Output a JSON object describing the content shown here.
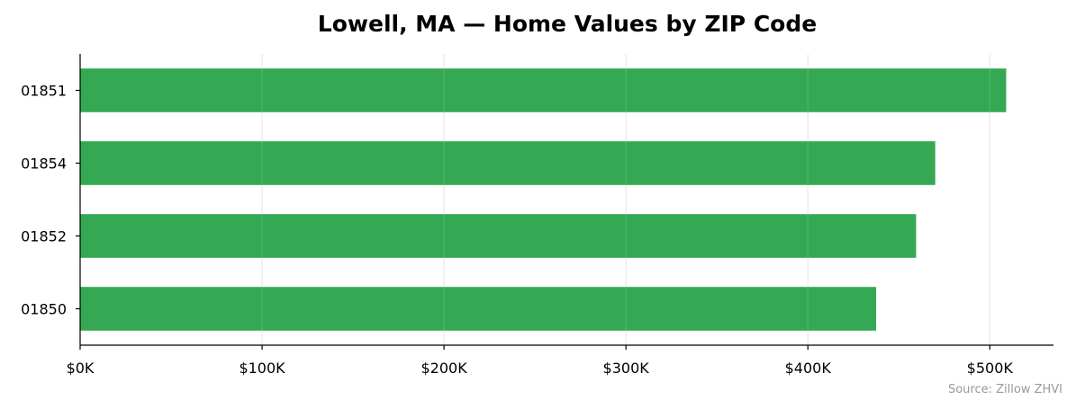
{
  "chart_data": {
    "type": "bar",
    "orientation": "horizontal",
    "title": "Lowell, MA — Home Values by ZIP Code",
    "categories": [
      "01851",
      "01854",
      "01852",
      "01850"
    ],
    "values": [
      509000,
      470000,
      459500,
      437500
    ],
    "x_ticks": [
      0,
      100000,
      200000,
      300000,
      400000,
      500000
    ],
    "x_tick_labels": [
      "$0K",
      "$100K",
      "$200K",
      "$300K",
      "$400K",
      "$500K"
    ],
    "xlim": [
      0,
      535000
    ],
    "grid": "vertical",
    "bar_color": "#34a853",
    "source": "Source: Zillow ZHVI"
  }
}
